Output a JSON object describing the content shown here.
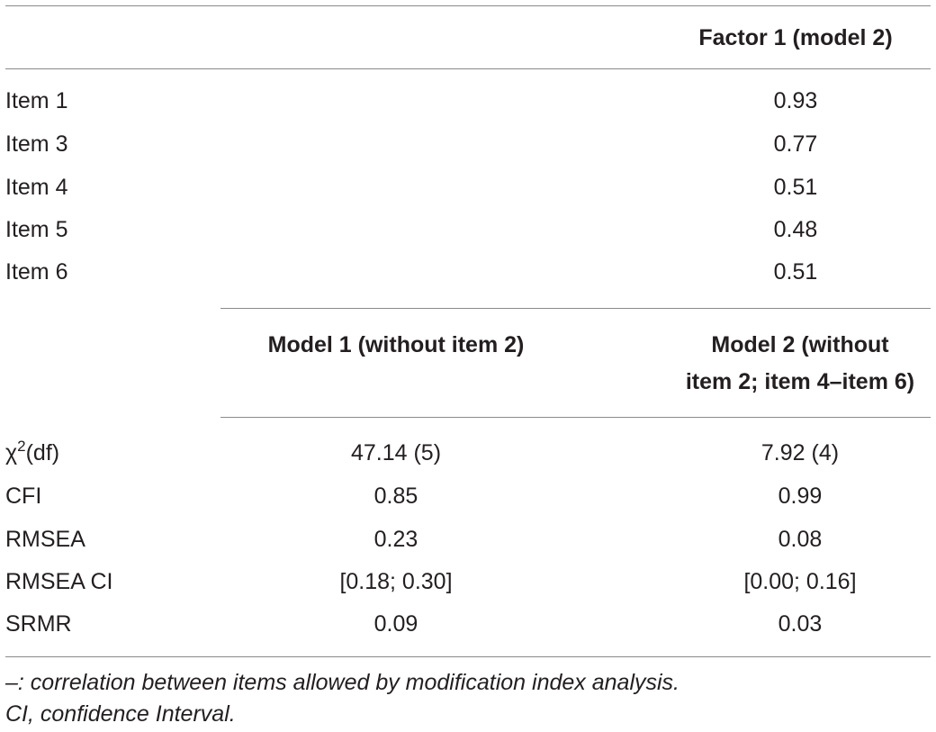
{
  "factor_table": {
    "header": "Factor 1 (model 2)",
    "rows": [
      {
        "label": "Item 1",
        "value": "0.93"
      },
      {
        "label": "Item 3",
        "value": "0.77"
      },
      {
        "label": "Item 4",
        "value": "0.51"
      },
      {
        "label": "Item 5",
        "value": "0.48"
      },
      {
        "label": "Item 6",
        "value": "0.51"
      }
    ]
  },
  "fit_table": {
    "col1_header": "Model 1 (without item 2)",
    "col2_header_line1": "Model 2 (without",
    "col2_header_line2": "item 2; item 4–item 6)",
    "chi": {
      "symbol": "χ",
      "sup": "2",
      "rest": "(df)"
    },
    "rows": [
      {
        "label": "",
        "m1": "47.14 (5)",
        "m2": "7.92 (4)"
      },
      {
        "label": "CFI",
        "m1": "0.85",
        "m2": "0.99"
      },
      {
        "label": "RMSEA",
        "m1": "0.23",
        "m2": "0.08"
      },
      {
        "label": "RMSEA CI",
        "m1": "[0.18; 0.30]",
        "m2": "[0.00; 0.16]"
      },
      {
        "label": "SRMR",
        "m1": "0.09",
        "m2": "0.03"
      }
    ]
  },
  "notes": {
    "line1": "–: correlation between items allowed by modification index analysis.",
    "line2": "CI, confidence Interval."
  }
}
